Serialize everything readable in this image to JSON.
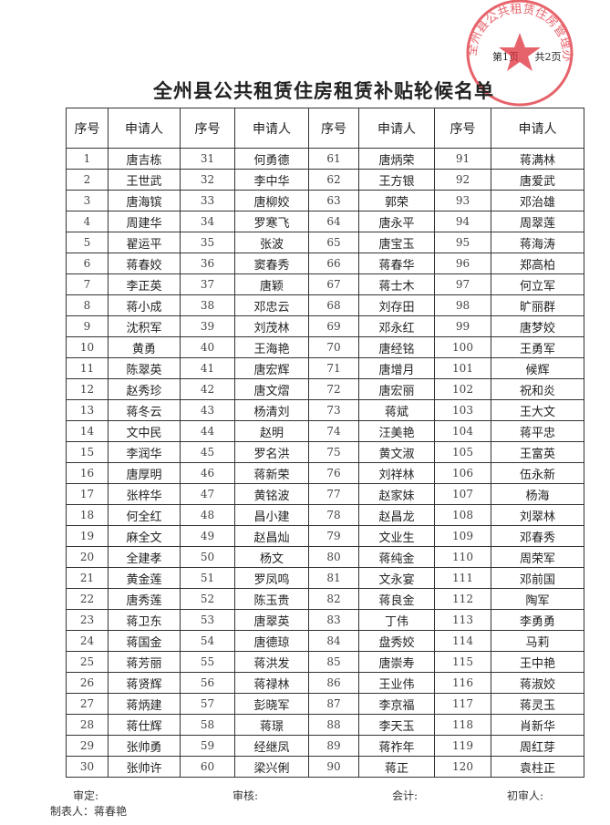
{
  "stamp": {
    "text": "全州县公共租赁住房管理办公室"
  },
  "page_info": [
    "第1页",
    "共2页"
  ],
  "title": "全州县公共租赁住房租赁补贴轮候名单",
  "table": {
    "header": [
      "序号",
      "申请人",
      "序号",
      "申请人",
      "序号",
      "申请人",
      "序号",
      "申请人"
    ],
    "rows": [
      [
        "1",
        "唐吉栋",
        "31",
        "何勇德",
        "61",
        "唐炳荣",
        "91",
        "蒋满林"
      ],
      [
        "2",
        "王世武",
        "32",
        "李中华",
        "62",
        "王方银",
        "92",
        "唐爱武"
      ],
      [
        "3",
        "唐海镔",
        "33",
        "唐柳姣",
        "63",
        "郭荣",
        "93",
        "邓治雄"
      ],
      [
        "4",
        "周建华",
        "34",
        "罗寒飞",
        "64",
        "唐永平",
        "94",
        "周翠莲"
      ],
      [
        "5",
        "翟运平",
        "35",
        "张波",
        "65",
        "唐宝玉",
        "95",
        "蒋海涛"
      ],
      [
        "6",
        "蒋春姣",
        "36",
        "窦春秀",
        "66",
        "蒋春华",
        "96",
        "郑高柏"
      ],
      [
        "7",
        "李正英",
        "37",
        "唐颖",
        "67",
        "蒋士木",
        "97",
        "何立军"
      ],
      [
        "8",
        "蒋小成",
        "38",
        "邓忠云",
        "68",
        "刘存田",
        "98",
        "旷丽群"
      ],
      [
        "9",
        "沈积军",
        "39",
        "刘茂林",
        "69",
        "邓永红",
        "99",
        "唐梦姣"
      ],
      [
        "10",
        "黄勇",
        "40",
        "王海艳",
        "70",
        "唐经铭",
        "100",
        "王勇军"
      ],
      [
        "11",
        "陈翠英",
        "41",
        "唐宏辉",
        "71",
        "唐增月",
        "101",
        "候辉"
      ],
      [
        "12",
        "赵秀珍",
        "42",
        "唐文熠",
        "72",
        "唐宏丽",
        "102",
        "祝和炎"
      ],
      [
        "13",
        "蒋冬云",
        "43",
        "杨清刘",
        "73",
        "蒋斌",
        "103",
        "王大文"
      ],
      [
        "14",
        "文中民",
        "44",
        "赵明",
        "74",
        "汪美艳",
        "104",
        "蒋平忠"
      ],
      [
        "15",
        "李润华",
        "45",
        "罗名洪",
        "75",
        "黄文淑",
        "105",
        "王富英"
      ],
      [
        "16",
        "唐厚明",
        "46",
        "蒋新荣",
        "76",
        "刘祥林",
        "106",
        "伍永新"
      ],
      [
        "17",
        "张梓华",
        "47",
        "黄铭波",
        "77",
        "赵家妹",
        "107",
        "杨海"
      ],
      [
        "18",
        "何全红",
        "48",
        "昌小建",
        "78",
        "赵昌龙",
        "108",
        "刘翠林"
      ],
      [
        "19",
        "麻全文",
        "49",
        "赵昌灿",
        "79",
        "文业生",
        "109",
        "邓春秀"
      ],
      [
        "20",
        "全建孝",
        "50",
        "杨文",
        "80",
        "蒋纯金",
        "110",
        "周荣军"
      ],
      [
        "21",
        "黄金莲",
        "51",
        "罗凤鸣",
        "81",
        "文永宴",
        "111",
        "邓前国"
      ],
      [
        "22",
        "唐秀莲",
        "52",
        "陈玉贵",
        "82",
        "蒋良金",
        "112",
        "陶军"
      ],
      [
        "23",
        "蒋卫东",
        "53",
        "唐翠英",
        "83",
        "丁伟",
        "113",
        "李勇勇"
      ],
      [
        "24",
        "蒋国金",
        "54",
        "唐德琼",
        "84",
        "盘秀姣",
        "114",
        "马莉"
      ],
      [
        "25",
        "蒋芳丽",
        "55",
        "蒋洪发",
        "85",
        "唐崇寿",
        "115",
        "王中艳"
      ],
      [
        "26",
        "蒋贤辉",
        "56",
        "蒋禄林",
        "86",
        "王业伟",
        "116",
        "蒋淑姣"
      ],
      [
        "27",
        "蒋炳建",
        "57",
        "彭晓军",
        "87",
        "李京福",
        "117",
        "蒋灵玉"
      ],
      [
        "28",
        "蒋仕辉",
        "58",
        "蒋璟",
        "88",
        "李天玉",
        "118",
        "肖新华"
      ],
      [
        "29",
        "张帅勇",
        "59",
        "经继凤",
        "89",
        "蒋祚年",
        "119",
        "周红芽"
      ],
      [
        "30",
        "张帅许",
        "60",
        "梁兴俐",
        "90",
        "蒋正",
        "120",
        "袁柱正"
      ]
    ]
  },
  "footer": {
    "signatures": [
      "审定:",
      "审核:",
      "会计:",
      "初审人:"
    ],
    "maker": "制表人：蒋春艳"
  }
}
